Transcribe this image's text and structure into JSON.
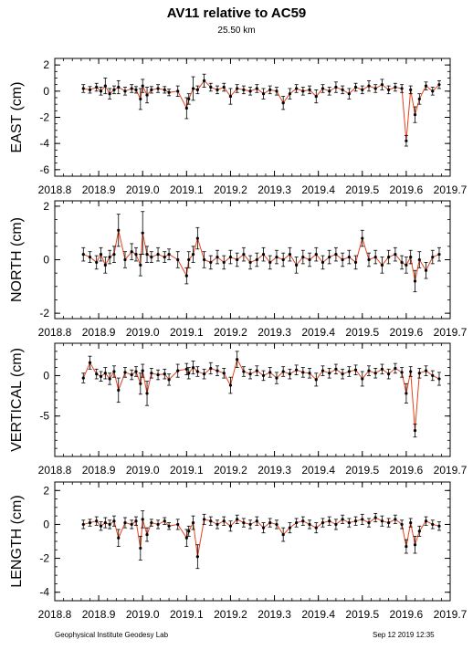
{
  "title": "AV11 relative to AC59",
  "subtitle": "25.50 km",
  "footer": {
    "left": "Geophysical Institute Geodesy Lab",
    "right": "Sep 12 2019 12:35"
  },
  "colors": {
    "line": "#e8401a",
    "point": "#000000",
    "axes": "#000000"
  },
  "chart_data": [
    {
      "type": "line",
      "ylabel": "EAST (cm)",
      "xlim": [
        2018.8,
        2019.7
      ],
      "ylim": [
        -6.5,
        2.5
      ],
      "xticks": [
        "2018.8",
        "2018.9",
        "2019.0",
        "2019.1",
        "2019.2",
        "2019.3",
        "2019.4",
        "2019.5",
        "2019.6",
        "2019.7"
      ],
      "yticks": [
        2,
        0,
        -2,
        -4,
        -6
      ],
      "x": [
        2018.865,
        2018.88,
        2018.895,
        2018.905,
        2018.915,
        2018.925,
        2018.935,
        2018.945,
        2018.96,
        2018.975,
        2018.985,
        2018.995,
        2019.0,
        2019.01,
        2019.02,
        2019.035,
        2019.05,
        2019.06,
        2019.08,
        2019.1,
        2019.105,
        2019.115,
        2019.125,
        2019.14,
        2019.155,
        2019.17,
        2019.185,
        2019.2,
        2019.215,
        2019.23,
        2019.245,
        2019.26,
        2019.275,
        2019.29,
        2019.305,
        2019.32,
        2019.335,
        2019.35,
        2019.365,
        2019.38,
        2019.395,
        2019.41,
        2019.425,
        2019.44,
        2019.455,
        2019.47,
        2019.485,
        2019.5,
        2019.515,
        2019.53,
        2019.545,
        2019.56,
        2019.575,
        2019.59,
        2019.6,
        2019.61,
        2019.62,
        2019.63,
        2019.645,
        2019.66,
        2019.675
      ],
      "y": [
        0.2,
        0.1,
        0.3,
        0.0,
        0.4,
        -0.2,
        0.1,
        0.3,
        0.0,
        0.2,
        0.1,
        -0.6,
        0.4,
        -0.3,
        0.1,
        0.2,
        0.1,
        -0.1,
        0.0,
        -1.3,
        -0.6,
        0.2,
        0.1,
        0.8,
        0.3,
        0.1,
        0.3,
        -0.4,
        0.2,
        0.1,
        0.0,
        0.2,
        -0.2,
        0.1,
        0.0,
        -0.9,
        -0.2,
        0.2,
        0.0,
        0.1,
        -0.4,
        0.2,
        0.0,
        0.3,
        0.1,
        -0.2,
        0.3,
        0.1,
        0.4,
        0.2,
        0.5,
        0.1,
        0.3,
        0.2,
        -3.8,
        0.1,
        -1.8,
        -0.6,
        0.4,
        0.0,
        0.5
      ],
      "err": [
        0.3,
        0.25,
        0.3,
        0.3,
        0.6,
        0.4,
        0.3,
        0.5,
        0.3,
        0.3,
        0.25,
        0.8,
        0.5,
        0.6,
        0.25,
        0.3,
        0.25,
        0.25,
        0.4,
        0.8,
        0.4,
        0.9,
        0.3,
        0.5,
        0.3,
        0.3,
        0.3,
        0.6,
        0.3,
        0.3,
        0.3,
        0.3,
        0.4,
        0.3,
        0.3,
        0.5,
        0.4,
        0.3,
        0.3,
        0.3,
        0.5,
        0.3,
        0.3,
        0.4,
        0.3,
        0.4,
        0.3,
        0.3,
        0.4,
        0.3,
        0.4,
        0.3,
        0.3,
        0.3,
        0.4,
        0.3,
        0.6,
        0.4,
        0.3,
        0.3,
        0.3
      ]
    },
    {
      "type": "line",
      "ylabel": "NORTH (cm)",
      "xlim": [
        2018.8,
        2019.7
      ],
      "ylim": [
        -2.2,
        2.2
      ],
      "xticks": [
        "2018.8",
        "2018.9",
        "2019.0",
        "2019.1",
        "2019.2",
        "2019.3",
        "2019.4",
        "2019.5",
        "2019.6",
        "2019.7"
      ],
      "yticks": [
        2,
        0,
        -2
      ],
      "x": [
        2018.865,
        2018.88,
        2018.895,
        2018.905,
        2018.915,
        2018.925,
        2018.935,
        2018.945,
        2018.96,
        2018.975,
        2018.985,
        2018.995,
        2019.0,
        2019.01,
        2019.02,
        2019.035,
        2019.05,
        2019.06,
        2019.08,
        2019.1,
        2019.105,
        2019.115,
        2019.125,
        2019.14,
        2019.155,
        2019.17,
        2019.185,
        2019.2,
        2019.215,
        2019.23,
        2019.245,
        2019.26,
        2019.275,
        2019.29,
        2019.305,
        2019.32,
        2019.335,
        2019.35,
        2019.365,
        2019.38,
        2019.395,
        2019.41,
        2019.425,
        2019.44,
        2019.455,
        2019.47,
        2019.485,
        2019.5,
        2019.515,
        2019.53,
        2019.545,
        2019.56,
        2019.575,
        2019.59,
        2019.6,
        2019.61,
        2019.62,
        2019.63,
        2019.645,
        2019.66,
        2019.675
      ],
      "y": [
        0.2,
        0.1,
        -0.1,
        0.2,
        -0.2,
        0.1,
        0.2,
        1.1,
        0.0,
        0.3,
        0.2,
        -0.2,
        1.0,
        0.2,
        0.1,
        0.2,
        0.1,
        0.2,
        0.0,
        -0.6,
        0.0,
        0.2,
        0.8,
        0.0,
        -0.1,
        0.1,
        -0.1,
        0.1,
        0.0,
        0.2,
        -0.1,
        0.0,
        0.2,
        -0.1,
        0.1,
        0.0,
        0.2,
        -0.2,
        0.1,
        0.0,
        0.2,
        -0.1,
        0.1,
        0.2,
        0.0,
        0.1,
        -0.1,
        0.8,
        0.0,
        0.1,
        -0.2,
        0.1,
        0.2,
        -0.1,
        -0.2,
        0.1,
        -0.8,
        0.0,
        -0.4,
        0.1,
        0.2
      ],
      "err": [
        0.25,
        0.2,
        0.25,
        0.25,
        0.3,
        0.25,
        0.3,
        0.6,
        0.3,
        0.3,
        0.25,
        0.4,
        0.8,
        0.3,
        0.2,
        0.25,
        0.2,
        0.2,
        0.3,
        0.3,
        0.3,
        0.3,
        0.4,
        0.3,
        0.25,
        0.25,
        0.25,
        0.25,
        0.25,
        0.25,
        0.25,
        0.25,
        0.25,
        0.25,
        0.25,
        0.25,
        0.25,
        0.3,
        0.25,
        0.25,
        0.25,
        0.25,
        0.25,
        0.25,
        0.25,
        0.25,
        0.25,
        0.3,
        0.25,
        0.25,
        0.3,
        0.25,
        0.25,
        0.25,
        0.3,
        0.25,
        0.4,
        0.3,
        0.3,
        0.25,
        0.25
      ]
    },
    {
      "type": "line",
      "ylabel": "VERTICAL (cm)",
      "xlim": [
        2018.8,
        2019.7
      ],
      "ylim": [
        -10,
        4
      ],
      "xticks": [
        "2018.8",
        "2018.9",
        "2019.0",
        "2019.1",
        "2019.2",
        "2019.3",
        "2019.4",
        "2019.5",
        "2019.6",
        "2019.7"
      ],
      "yticks": [
        0,
        -5
      ],
      "x": [
        2018.865,
        2018.88,
        2018.895,
        2018.905,
        2018.915,
        2018.925,
        2018.935,
        2018.945,
        2018.96,
        2018.975,
        2018.985,
        2018.995,
        2019.0,
        2019.01,
        2019.02,
        2019.035,
        2019.05,
        2019.06,
        2019.08,
        2019.1,
        2019.105,
        2019.115,
        2019.125,
        2019.14,
        2019.155,
        2019.17,
        2019.185,
        2019.2,
        2019.215,
        2019.23,
        2019.245,
        2019.26,
        2019.275,
        2019.29,
        2019.305,
        2019.32,
        2019.335,
        2019.35,
        2019.365,
        2019.38,
        2019.395,
        2019.41,
        2019.425,
        2019.44,
        2019.455,
        2019.47,
        2019.485,
        2019.5,
        2019.515,
        2019.53,
        2019.545,
        2019.56,
        2019.575,
        2019.59,
        2019.6,
        2019.61,
        2019.62,
        2019.63,
        2019.645,
        2019.66,
        2019.675
      ],
      "y": [
        -0.3,
        1.6,
        0.2,
        -0.1,
        0.3,
        -0.4,
        0.5,
        -1.8,
        0.4,
        0.1,
        0.5,
        -1.0,
        0.6,
        -2.2,
        0.3,
        0.1,
        0.2,
        -0.5,
        0.6,
        0.8,
        0.3,
        1.0,
        0.5,
        0.2,
        0.9,
        0.6,
        0.3,
        -1.2,
        2.0,
        0.5,
        0.2,
        0.6,
        0.0,
        0.4,
        -0.3,
        0.5,
        0.2,
        0.7,
        0.4,
        0.3,
        -0.5,
        0.6,
        0.3,
        0.8,
        0.2,
        0.5,
        0.7,
        -0.4,
        0.6,
        0.3,
        0.8,
        0.2,
        0.9,
        0.4,
        -2.2,
        0.5,
        -6.8,
        0.3,
        0.6,
        0.0,
        -0.4
      ],
      "err": [
        0.6,
        0.8,
        0.6,
        0.6,
        0.7,
        0.7,
        0.7,
        1.5,
        0.6,
        0.6,
        0.6,
        1.3,
        0.8,
        1.5,
        0.6,
        0.6,
        0.6,
        0.7,
        0.8,
        0.7,
        0.7,
        0.8,
        0.6,
        0.6,
        0.7,
        0.6,
        0.6,
        1.0,
        1.0,
        0.6,
        0.6,
        0.6,
        0.6,
        0.6,
        0.7,
        0.6,
        0.6,
        0.6,
        0.6,
        0.6,
        0.8,
        0.6,
        0.6,
        0.6,
        0.6,
        0.6,
        0.6,
        0.9,
        0.6,
        0.6,
        0.6,
        0.6,
        0.6,
        0.6,
        1.2,
        0.6,
        0.8,
        0.6,
        0.6,
        0.6,
        0.8
      ]
    },
    {
      "type": "line",
      "ylabel": "LENGTH (cm)",
      "xlim": [
        2018.8,
        2019.7
      ],
      "ylim": [
        -4.5,
        2.5
      ],
      "xticks": [
        "2018.8",
        "2018.9",
        "2019.0",
        "2019.1",
        "2019.2",
        "2019.3",
        "2019.4",
        "2019.5",
        "2019.6",
        "2019.7"
      ],
      "yticks": [
        2,
        0,
        -2,
        -4
      ],
      "x": [
        2018.865,
        2018.88,
        2018.895,
        2018.905,
        2018.915,
        2018.925,
        2018.935,
        2018.945,
        2018.96,
        2018.975,
        2018.985,
        2018.995,
        2019.0,
        2019.01,
        2019.02,
        2019.035,
        2019.05,
        2019.06,
        2019.08,
        2019.1,
        2019.105,
        2019.115,
        2019.125,
        2019.14,
        2019.155,
        2019.17,
        2019.185,
        2019.2,
        2019.215,
        2019.23,
        2019.245,
        2019.26,
        2019.275,
        2019.29,
        2019.305,
        2019.32,
        2019.335,
        2019.35,
        2019.365,
        2019.38,
        2019.395,
        2019.41,
        2019.425,
        2019.44,
        2019.455,
        2019.47,
        2019.485,
        2019.5,
        2019.515,
        2019.53,
        2019.545,
        2019.56,
        2019.575,
        2019.59,
        2019.6,
        2019.61,
        2019.62,
        2019.63,
        2019.645,
        2019.66,
        2019.675
      ],
      "y": [
        0.0,
        0.1,
        0.2,
        -0.1,
        0.1,
        0.0,
        0.2,
        -0.8,
        0.1,
        0.0,
        0.2,
        -1.4,
        0.3,
        -0.6,
        0.1,
        0.0,
        0.2,
        -0.1,
        0.0,
        -0.8,
        -0.4,
        0.1,
        -1.9,
        0.3,
        0.2,
        0.0,
        0.2,
        -0.1,
        0.3,
        0.1,
        0.0,
        0.2,
        -0.2,
        0.1,
        0.0,
        -0.6,
        -0.2,
        0.1,
        0.2,
        0.0,
        -0.2,
        0.1,
        0.2,
        0.0,
        0.3,
        0.1,
        0.2,
        0.3,
        0.1,
        0.4,
        0.2,
        0.1,
        0.3,
        0.0,
        -1.3,
        0.1,
        -1.2,
        -0.4,
        0.2,
        0.0,
        -0.1
      ],
      "err": [
        0.25,
        0.2,
        0.25,
        0.25,
        0.3,
        0.25,
        0.3,
        0.5,
        0.3,
        0.25,
        0.25,
        0.7,
        0.5,
        0.4,
        0.2,
        0.25,
        0.2,
        0.2,
        0.3,
        0.5,
        0.3,
        0.4,
        0.7,
        0.3,
        0.25,
        0.25,
        0.25,
        0.3,
        0.25,
        0.25,
        0.25,
        0.25,
        0.3,
        0.25,
        0.25,
        0.4,
        0.3,
        0.25,
        0.25,
        0.25,
        0.3,
        0.25,
        0.25,
        0.3,
        0.25,
        0.25,
        0.25,
        0.3,
        0.25,
        0.25,
        0.3,
        0.25,
        0.25,
        0.25,
        0.4,
        0.25,
        0.5,
        0.3,
        0.25,
        0.25,
        0.25
      ]
    }
  ]
}
